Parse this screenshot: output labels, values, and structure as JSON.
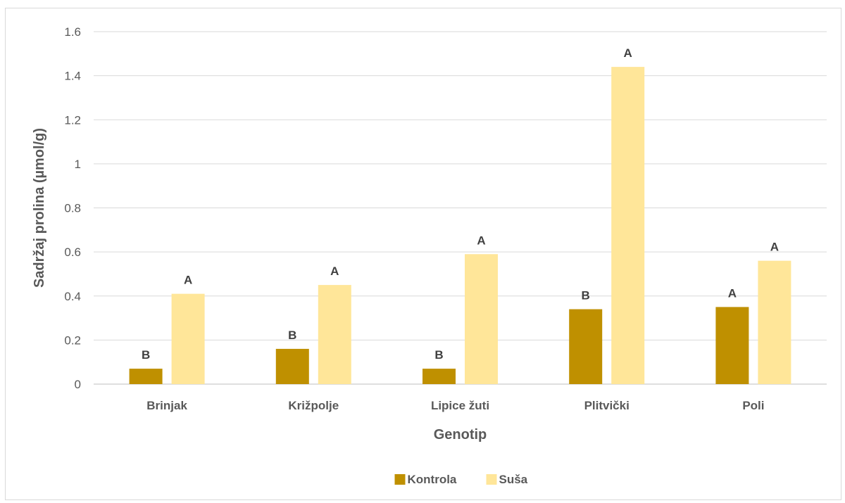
{
  "chart_data": {
    "type": "bar",
    "title": "",
    "xlabel": "Genotip",
    "ylabel": "Sadržaj prolina (µmol/g)",
    "categories": [
      "Brinjak",
      "Križpolje",
      "Lipice žuti",
      "Plitvički",
      "Poli"
    ],
    "ylim": [
      0,
      1.6
    ],
    "yticks": [
      0,
      0.2,
      0.4,
      0.6,
      0.8,
      1,
      1.2,
      1.4,
      1.6
    ],
    "ytick_labels": [
      "0",
      "0.2",
      "0.4",
      "0.6",
      "0.8",
      "1",
      "1.2",
      "1.4",
      "1.6"
    ],
    "grid": true,
    "legend_position": "bottom",
    "series": [
      {
        "name": "Kontrola",
        "color": "#bf9000",
        "values": [
          0.07,
          0.16,
          0.07,
          0.34,
          0.35
        ],
        "labels": [
          "B",
          "B",
          "B",
          "B",
          "A"
        ]
      },
      {
        "name": "Suša",
        "color": "#ffe699",
        "values": [
          0.41,
          0.45,
          0.59,
          1.44,
          0.56
        ],
        "labels": [
          "A",
          "A",
          "A",
          "A",
          "A"
        ]
      }
    ]
  }
}
